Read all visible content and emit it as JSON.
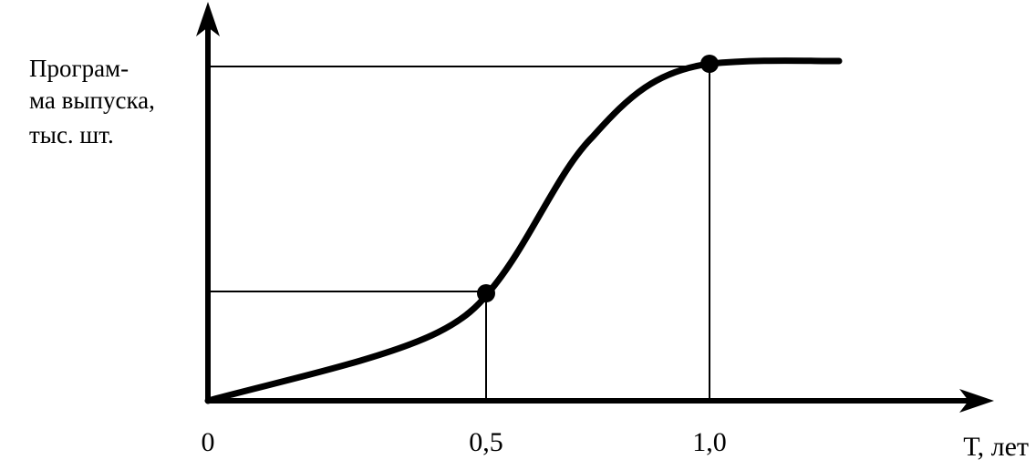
{
  "y_axis_label": {
    "lines": [
      "Програм-",
      "ма выпуска,",
      "тыс. шт."
    ]
  },
  "x_axis_label": "Т, лет",
  "x_ticks": [
    "0",
    "0,5",
    "1,0"
  ]
}
